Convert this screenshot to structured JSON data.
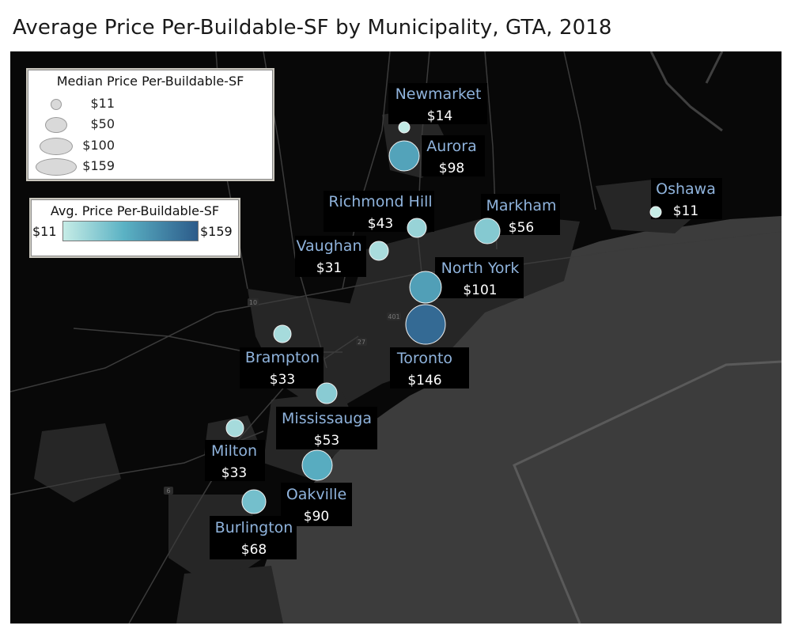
{
  "title": "Average Price Per-Buildable-SF by Municipality, GTA, 2018",
  "size_legend": {
    "title": "Median Price Per-Buildable-SF",
    "items": [
      "$11",
      "$50",
      "$100",
      "$159"
    ]
  },
  "color_legend": {
    "title": "Avg. Price Per-Buildable-SF",
    "min_label": "$11",
    "max_label": "$159",
    "colors": [
      "#c6ece6",
      "#5bb2c4",
      "#2c5b8a"
    ]
  },
  "chart_data": {
    "type": "scatter",
    "title": "Average Price Per-Buildable-SF by Municipality, GTA, 2018",
    "size_metric": "Median Price Per-Buildable-SF",
    "color_metric": "Avg. Price Per-Buildable-SF",
    "color_range": [
      11,
      159
    ],
    "points": [
      {
        "name": "Newmarket",
        "label": "$14",
        "value": 14
      },
      {
        "name": "Aurora",
        "label": "$98",
        "value": 98
      },
      {
        "name": "Richmond Hill",
        "label": "$43",
        "value": 43
      },
      {
        "name": "Markham",
        "label": "$56",
        "value": 56
      },
      {
        "name": "Oshawa",
        "label": "$11",
        "value": 11
      },
      {
        "name": "Vaughan",
        "label": "$31",
        "value": 31
      },
      {
        "name": "North York",
        "label": "$101",
        "value": 101
      },
      {
        "name": "Toronto",
        "label": "$146",
        "value": 146
      },
      {
        "name": "Brampton",
        "label": "$33",
        "value": 33
      },
      {
        "name": "Mississauga",
        "label": "$53",
        "value": 53
      },
      {
        "name": "Milton",
        "label": "$33",
        "value": 33
      },
      {
        "name": "Oakville",
        "label": "$90",
        "value": 90
      },
      {
        "name": "Burlington",
        "label": "$68",
        "value": 68
      }
    ]
  },
  "map_labels": {
    "road_401": "401",
    "road_401b": "401",
    "road_27": "27",
    "road_10": "10",
    "road_6": "6"
  }
}
